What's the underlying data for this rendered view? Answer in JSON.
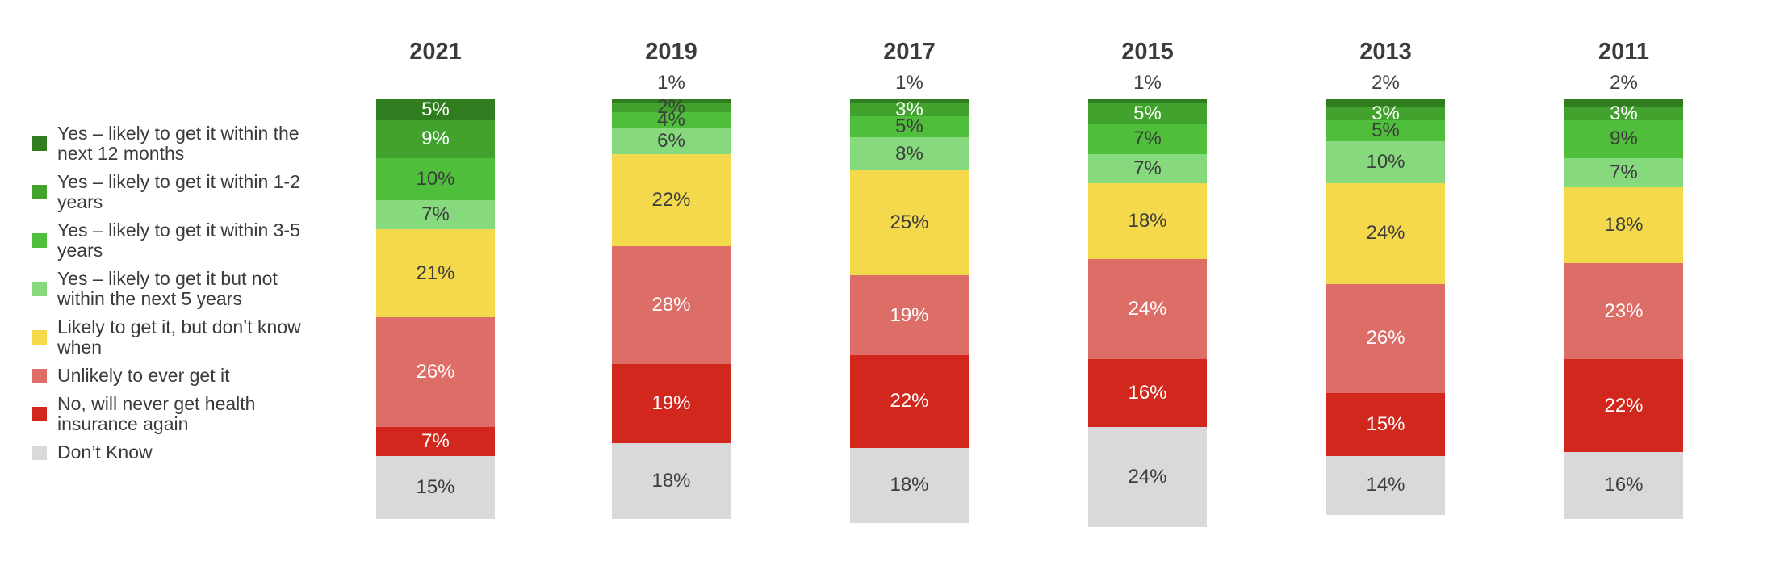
{
  "chart_data": {
    "type": "bar",
    "variant": "stacked-column",
    "stacked": true,
    "value_format": "percent",
    "legend_position": "left",
    "column_header_position": "top",
    "axes_visible": false,
    "gridlines": false,
    "categories": [
      "2021",
      "2019",
      "2017",
      "2015",
      "2013",
      "2011"
    ],
    "series": [
      {
        "name": "Yes – likely to get it within the next 12 months",
        "color": "#2F7D1E",
        "values": [
          5,
          1,
          1,
          1,
          2,
          2
        ]
      },
      {
        "name": "Yes – likely to get it within 1-2 years",
        "color": "#41A32D",
        "values": [
          9,
          2,
          3,
          5,
          3,
          3
        ]
      },
      {
        "name": "Yes – likely to get it within 3-5 years",
        "color": "#4FBE3B",
        "values": [
          10,
          4,
          5,
          7,
          5,
          9
        ]
      },
      {
        "name": "Yes – likely to get it but not within the next 5 years",
        "color": "#87D97E",
        "values": [
          7,
          6,
          8,
          7,
          10,
          7
        ]
      },
      {
        "name": "Likely to get it, but don’t know when",
        "color": "#F5D94D",
        "values": [
          21,
          22,
          25,
          18,
          24,
          18
        ]
      },
      {
        "name": "Unlikely to ever get it",
        "color": "#DC6E67",
        "values": [
          26,
          28,
          19,
          24,
          26,
          23
        ]
      },
      {
        "name": "No, will never get health insurance again",
        "color": "#D2271D",
        "values": [
          7,
          19,
          22,
          16,
          15,
          22
        ]
      },
      {
        "name": "Don’t Know",
        "color": "#D9D9D9",
        "values": [
          15,
          18,
          18,
          24,
          14,
          16
        ]
      }
    ]
  },
  "render": {
    "label_text_colors": {
      "2021": [
        "light",
        "light",
        "dark",
        "dark",
        "dark",
        "light",
        "light",
        "dark"
      ],
      "2019": [
        "dark",
        "dark",
        "dark",
        "dark",
        "dark",
        "light",
        "light",
        "dark"
      ],
      "2017": [
        "dark",
        "light",
        "dark",
        "dark",
        "dark",
        "light",
        "light",
        "dark"
      ],
      "2015": [
        "dark",
        "light",
        "dark",
        "dark",
        "dark",
        "light",
        "light",
        "dark"
      ],
      "2013": [
        "dark",
        "light",
        "dark",
        "dark",
        "dark",
        "light",
        "light",
        "dark"
      ],
      "2011": [
        "dark",
        "light",
        "dark",
        "dark",
        "dark",
        "light",
        "light",
        "dark"
      ]
    },
    "label_placements": {
      "2021": [
        "inside",
        "inside",
        "inside",
        "inside",
        "inside",
        "inside",
        "inside",
        "inside"
      ],
      "2019": [
        "above",
        "inside",
        "inside",
        "inside",
        "inside",
        "inside",
        "inside",
        "inside"
      ],
      "2017": [
        "above",
        "inside",
        "inside",
        "inside",
        "inside",
        "inside",
        "inside",
        "inside"
      ],
      "2015": [
        "above",
        "inside",
        "inside",
        "inside",
        "inside",
        "inside",
        "inside",
        "inside"
      ],
      "2013": [
        "above",
        "inside",
        "inside",
        "inside",
        "inside",
        "inside",
        "inside",
        "inside"
      ],
      "2011": [
        "above",
        "inside",
        "inside",
        "inside",
        "inside",
        "inside",
        "inside",
        "inside"
      ]
    }
  },
  "style": {
    "background": "#FFFFFF",
    "dark_label": "#3D3D3D",
    "light_label": "#FFFFFF",
    "header_text": "#3C3C3C",
    "legend_text": "#3B3B3B"
  }
}
